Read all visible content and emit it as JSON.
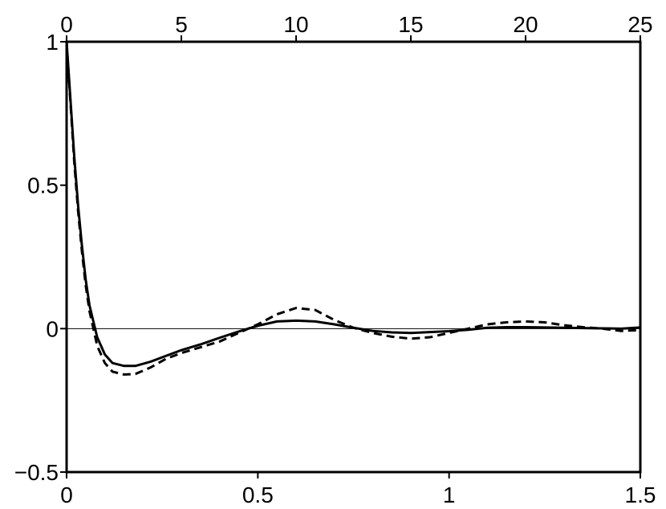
{
  "chart_data": {
    "type": "line",
    "x": [
      0,
      0.01,
      0.02,
      0.03,
      0.04,
      0.05,
      0.06,
      0.08,
      0.1,
      0.12,
      0.15,
      0.18,
      0.22,
      0.26,
      0.3,
      0.35,
      0.4,
      0.45,
      0.5,
      0.55,
      0.6,
      0.65,
      0.7,
      0.75,
      0.8,
      0.85,
      0.9,
      0.95,
      1.0,
      1.05,
      1.1,
      1.15,
      1.2,
      1.25,
      1.3,
      1.35,
      1.4,
      1.45,
      1.5
    ],
    "series": [
      {
        "color": "#000000",
        "style": "solid",
        "values": [
          1,
          0.8,
          0.6,
          0.43,
          0.29,
          0.17,
          0.08,
          -0.03,
          -0.09,
          -0.12,
          -0.13,
          -0.13,
          -0.115,
          -0.095,
          -0.075,
          -0.055,
          -0.032,
          -0.01,
          0.01,
          0.025,
          0.028,
          0.025,
          0.015,
          0.003,
          -0.008,
          -0.013,
          -0.015,
          -0.012,
          -0.009,
          -0.004,
          0.003,
          0.005,
          0.005,
          0.004,
          0.003,
          0.002,
          0.001,
          0,
          0.004
        ]
      },
      {
        "color": "#000000",
        "style": "dashed",
        "values": [
          1,
          0.79,
          0.58,
          0.41,
          0.27,
          0.15,
          0.06,
          -0.06,
          -0.12,
          -0.15,
          -0.16,
          -0.158,
          -0.135,
          -0.105,
          -0.085,
          -0.065,
          -0.045,
          -0.015,
          0.015,
          0.05,
          0.072,
          0.065,
          0.03,
          0.003,
          -0.015,
          -0.028,
          -0.035,
          -0.03,
          -0.015,
          0,
          0.015,
          0.022,
          0.025,
          0.022,
          0.012,
          0.005,
          0,
          -0.008,
          -0.005
        ]
      }
    ],
    "xlim": [
      0,
      1.5
    ],
    "xticks": [
      0,
      0.5,
      1,
      1.5
    ],
    "x2lim": [
      0,
      25
    ],
    "x2ticks": [
      0,
      5,
      10,
      15,
      20,
      25
    ],
    "ylim": [
      -0.5,
      1
    ],
    "yticks": [
      {
        "value": -0.5,
        "label": "−0.5"
      },
      0,
      0.5,
      1
    ],
    "zero_line": true
  }
}
